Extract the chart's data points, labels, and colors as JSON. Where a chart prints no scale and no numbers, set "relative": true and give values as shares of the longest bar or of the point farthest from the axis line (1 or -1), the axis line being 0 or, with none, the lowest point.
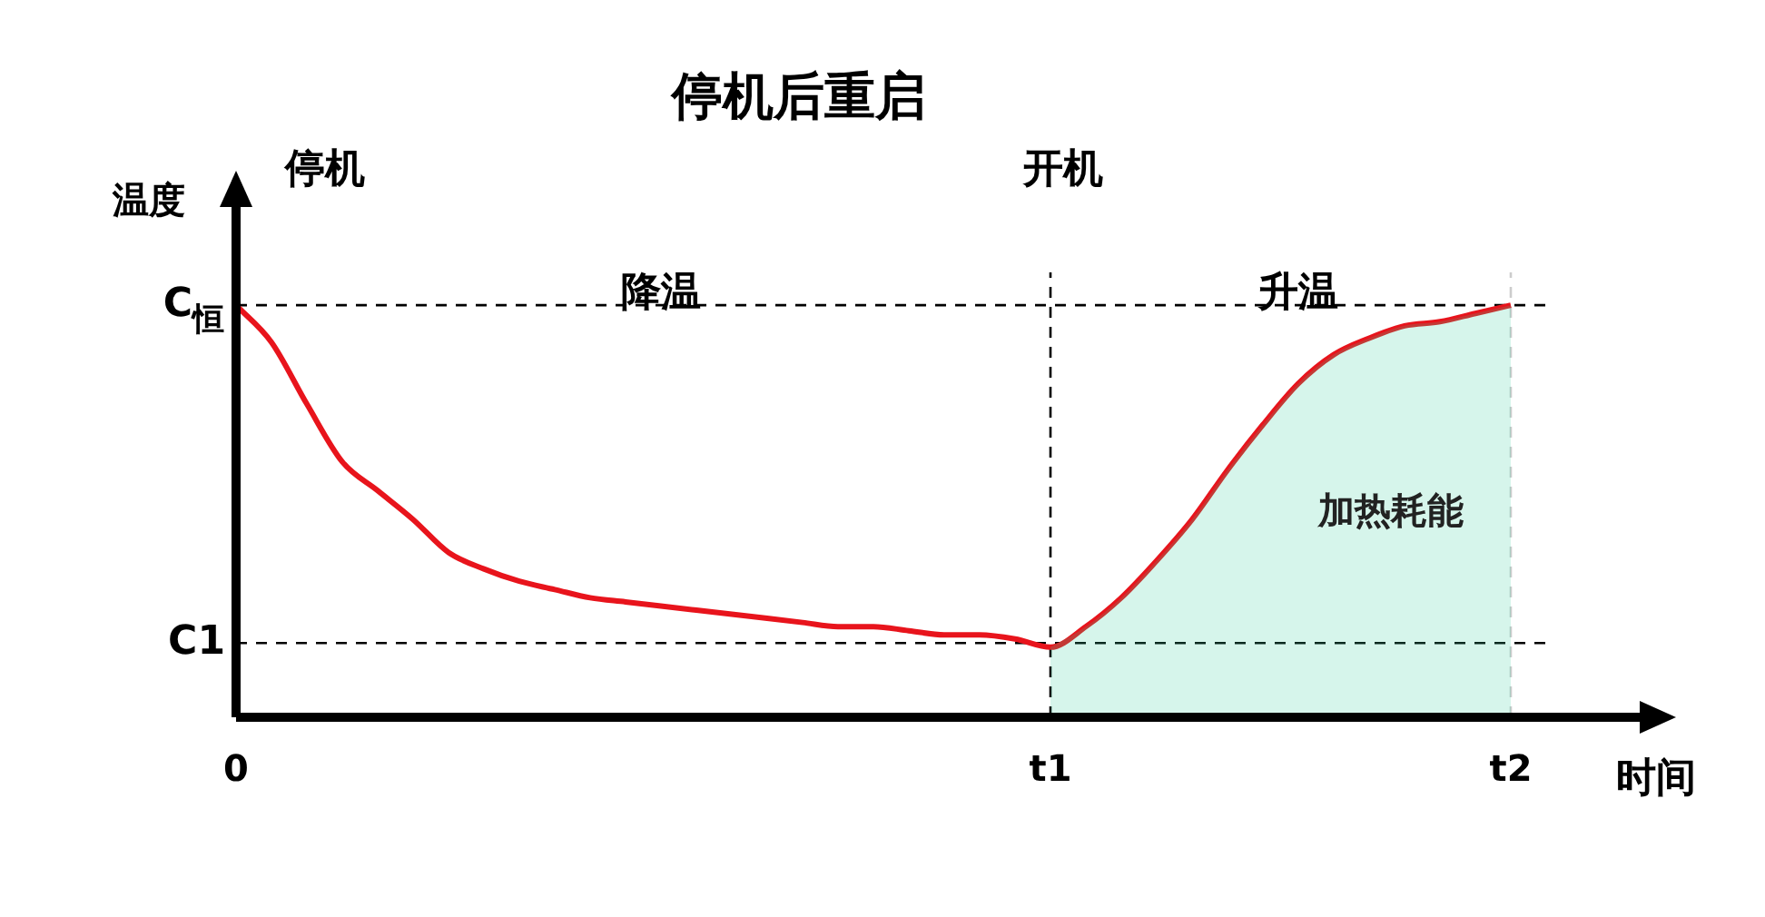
{
  "chart_data": {
    "type": "line",
    "title": "停机后重启",
    "xlabel": "时间",
    "ylabel": "温度",
    "relative": true,
    "categories": [
      "0",
      null,
      null,
      null,
      null,
      null,
      null,
      null,
      null,
      null,
      null,
      null,
      null,
      null,
      null,
      null,
      null,
      null,
      null,
      null,
      null,
      null,
      null,
      "t1",
      null,
      null,
      null,
      null,
      null,
      null,
      null,
      null,
      null,
      null,
      null,
      null,
      "t2"
    ],
    "series": [
      {
        "type": "area",
        "name": "加热耗能",
        "color": "#33cc99",
        "values": [
          null,
          null,
          null,
          null,
          null,
          null,
          null,
          null,
          null,
          null,
          null,
          null,
          null,
          null,
          null,
          null,
          null,
          null,
          null,
          null,
          null,
          null,
          null,
          0.17,
          0.22,
          0.29,
          0.38,
          0.48,
          0.6,
          0.71,
          0.81,
          0.88,
          0.92,
          0.95,
          0.96,
          0.98,
          1
        ]
      },
      {
        "color": "#e8141c",
        "values": [
          1,
          0.91,
          0.76,
          0.62,
          0.55,
          0.48,
          0.4,
          0.36,
          0.33,
          0.31,
          0.29,
          0.28,
          0.27,
          0.26,
          0.25,
          0.24,
          0.23,
          0.22,
          0.22,
          0.21,
          0.2,
          0.2,
          0.19,
          0.17,
          0.22,
          0.29,
          0.38,
          0.48,
          0.6,
          0.71,
          0.81,
          0.88,
          0.92,
          0.95,
          0.96,
          0.98,
          1
        ]
      }
    ],
    "marker": "none",
    "line_style": "solid",
    "legend": false,
    "grid": false,
    "ref_lines": [
      {
        "axis": "y",
        "value": 1,
        "label": "C$_{恒}$",
        "line_style": "dashed",
        "color": "#000000"
      },
      {
        "axis": "y",
        "value": 0.18,
        "label": "C1",
        "line_style": "dashed",
        "color": "#000000"
      },
      {
        "axis": "x",
        "value": "t1",
        "line_style": "dashed",
        "color": "#000000"
      },
      {
        "axis": "x",
        "value": "t2",
        "line_style": "dashed",
        "color": "#cccccc"
      }
    ],
    "annotations": [
      "停机",
      "降温",
      "开机",
      "升温"
    ]
  }
}
